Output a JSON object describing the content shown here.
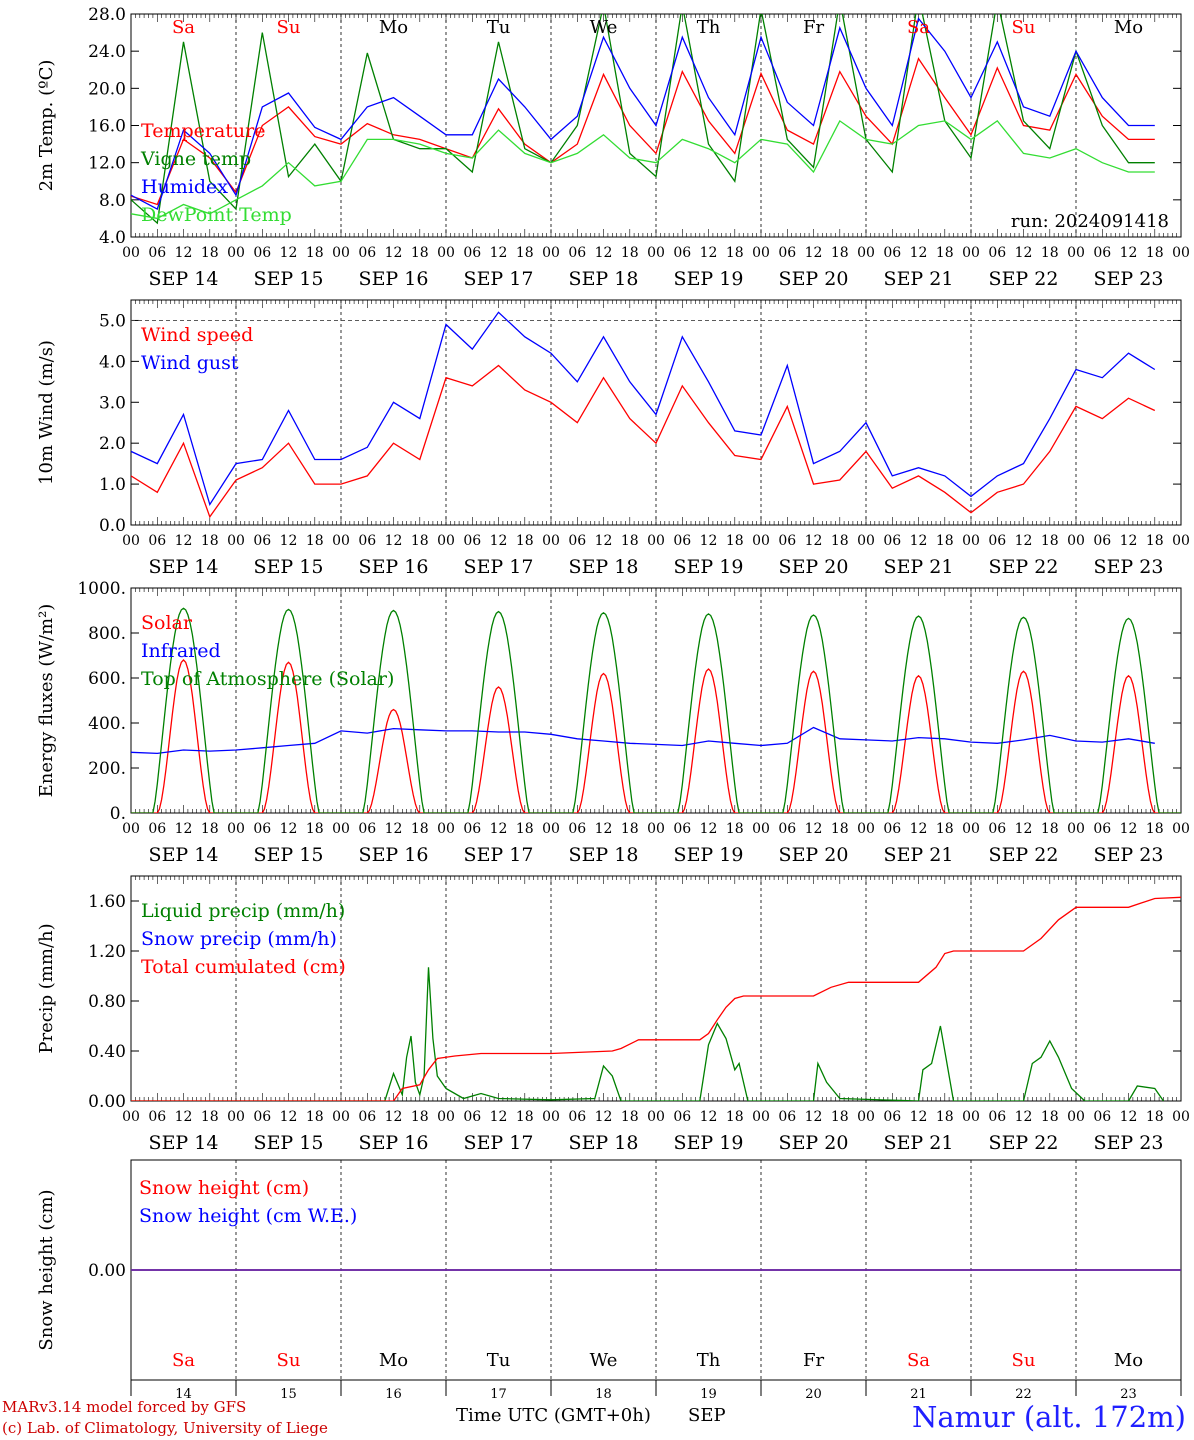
{
  "chart_data": [
    {
      "type": "line",
      "ylabel": "2m Temp. (ºC)",
      "ylim": [
        4.0,
        28.0
      ],
      "yticks": [
        "4.0",
        "8.0",
        "12.0",
        "16.0",
        "20.0",
        "24.0",
        "28.0"
      ],
      "day_labels": [
        "Sa",
        "Su",
        "Mo",
        "Tu",
        "We",
        "Th",
        "Fr",
        "Sa",
        "Su",
        "Mo"
      ],
      "date_labels": [
        "SEP 14",
        "SEP 15",
        "SEP 16",
        "SEP 17",
        "SEP 18",
        "SEP 19",
        "SEP 20",
        "SEP 21",
        "SEP 22",
        "SEP 23"
      ],
      "hour_labels": [
        "00",
        "06",
        "12",
        "18"
      ],
      "annotation": "run: 2024091418",
      "x_hours": [
        0,
        6,
        12,
        18,
        24,
        30,
        36,
        42,
        48,
        54,
        60,
        66,
        72,
        78,
        84,
        90,
        96,
        102,
        108,
        114,
        120,
        126,
        132,
        138,
        144,
        150,
        156,
        162,
        168,
        174,
        180,
        186,
        192,
        198,
        204,
        210,
        216,
        222,
        228,
        234
      ],
      "series": [
        {
          "name": "Temperature",
          "color": "#ff0000",
          "values": [
            8.4,
            7.5,
            14.5,
            12.5,
            8.8,
            16.0,
            18.0,
            14.8,
            14.0,
            16.2,
            15.0,
            14.5,
            13.5,
            12.5,
            17.8,
            14.0,
            12.0,
            14.0,
            21.5,
            16.0,
            13.0,
            21.8,
            16.5,
            13.0,
            21.6,
            15.5,
            14.0,
            21.8,
            17.0,
            14.0,
            23.2,
            19.0,
            15.0,
            22.2,
            16.0,
            15.5,
            21.5,
            17.0,
            14.5,
            14.5
          ]
        },
        {
          "name": "Vigne temp",
          "color": "#008000",
          "values": [
            8.0,
            5.5,
            25.0,
            10.0,
            7.0,
            26.0,
            10.5,
            14.0,
            10.0,
            23.8,
            14.5,
            13.5,
            13.5,
            11.0,
            25.0,
            13.5,
            12.0,
            16.0,
            29.0,
            13.0,
            10.5,
            29.0,
            14.0,
            10.0,
            28.5,
            14.5,
            11.5,
            29.5,
            14.5,
            11.0,
            30.0,
            16.5,
            12.5,
            29.5,
            16.5,
            13.5,
            24.0,
            16.0,
            12.0,
            12.0
          ]
        },
        {
          "name": "Humidex",
          "color": "#0000ff",
          "values": [
            8.5,
            7.0,
            15.5,
            13.0,
            8.5,
            18.0,
            19.5,
            15.8,
            14.5,
            18.0,
            19.0,
            17.0,
            15.0,
            15.0,
            21.0,
            18.0,
            14.5,
            17.0,
            25.5,
            20.0,
            16.0,
            25.5,
            19.0,
            15.0,
            25.5,
            18.5,
            16.0,
            26.5,
            20.0,
            16.0,
            27.5,
            24.0,
            19.0,
            25.0,
            18.0,
            17.0,
            24.0,
            19.0,
            16.0,
            16.0
          ]
        },
        {
          "name": "DewPoint Temp",
          "color": "#33dd33",
          "values": [
            6.5,
            6.0,
            7.5,
            6.5,
            8.0,
            9.5,
            12.0,
            9.5,
            10.0,
            14.5,
            14.5,
            14.0,
            13.0,
            12.5,
            15.5,
            13.0,
            12.0,
            13.0,
            15.0,
            12.5,
            12.0,
            14.5,
            13.5,
            12.0,
            14.5,
            14.0,
            11.0,
            16.5,
            14.5,
            14.0,
            16.0,
            16.5,
            14.5,
            16.5,
            13.0,
            12.5,
            13.5,
            12.0,
            11.0,
            11.0
          ]
        }
      ]
    },
    {
      "type": "line",
      "ylabel": "10m Wind (m/s)",
      "ylim": [
        0.0,
        5.5
      ],
      "yticks": [
        "0.0",
        "1.0",
        "2.0",
        "3.0",
        "4.0",
        "5.0"
      ],
      "date_labels": [
        "SEP 14",
        "SEP 15",
        "SEP 16",
        "SEP 17",
        "SEP 18",
        "SEP 19",
        "SEP 20",
        "SEP 21",
        "SEP 22",
        "SEP 23"
      ],
      "hour_labels": [
        "00",
        "06",
        "12",
        "18"
      ],
      "x_hours": [
        0,
        6,
        12,
        18,
        24,
        30,
        36,
        42,
        48,
        54,
        60,
        66,
        72,
        78,
        84,
        90,
        96,
        102,
        108,
        114,
        120,
        126,
        132,
        138,
        144,
        150,
        156,
        162,
        168,
        174,
        180,
        186,
        192,
        198,
        204,
        210,
        216,
        222,
        228,
        234
      ],
      "series": [
        {
          "name": "Wind speed",
          "color": "#ff0000",
          "values": [
            1.2,
            0.8,
            2.0,
            0.2,
            1.1,
            1.4,
            2.0,
            1.0,
            1.0,
            1.2,
            2.0,
            1.6,
            3.6,
            3.4,
            3.9,
            3.3,
            3.0,
            2.5,
            3.6,
            2.6,
            2.0,
            3.4,
            2.5,
            1.7,
            1.6,
            2.9,
            1.0,
            1.1,
            1.8,
            0.9,
            1.2,
            0.8,
            0.3,
            0.8,
            1.0,
            1.8,
            2.9,
            2.6,
            3.1,
            2.8
          ]
        },
        {
          "name": "Wind gust",
          "color": "#0000ff",
          "values": [
            1.8,
            1.5,
            2.7,
            0.5,
            1.5,
            1.6,
            2.8,
            1.6,
            1.6,
            1.9,
            3.0,
            2.6,
            4.9,
            4.3,
            5.2,
            4.6,
            4.2,
            3.5,
            4.6,
            3.5,
            2.7,
            4.6,
            3.5,
            2.3,
            2.2,
            3.9,
            1.5,
            1.8,
            2.5,
            1.2,
            1.4,
            1.2,
            0.7,
            1.2,
            1.5,
            2.6,
            3.8,
            3.6,
            4.2,
            3.8
          ]
        }
      ]
    },
    {
      "type": "line",
      "ylabel": "Energy fluxes (W/m²)",
      "ylim": [
        0,
        1000
      ],
      "yticks": [
        "0.",
        "200.",
        "400.",
        "600.",
        "800.",
        "1000."
      ],
      "date_labels": [
        "SEP 14",
        "SEP 15",
        "SEP 16",
        "SEP 17",
        "SEP 18",
        "SEP 19",
        "SEP 20",
        "SEP 21",
        "SEP 22",
        "SEP 23"
      ],
      "hour_labels": [
        "00",
        "06",
        "12",
        "18"
      ],
      "series": [
        {
          "name": "Solar",
          "color": "#ff0000",
          "peaks": [
            680,
            670,
            460,
            560,
            620,
            640,
            630,
            610,
            630,
            610
          ]
        },
        {
          "name": "Infrared",
          "color": "#0000ff",
          "values": [
            270,
            265,
            280,
            275,
            280,
            290,
            300,
            310,
            365,
            355,
            375,
            370,
            365,
            365,
            360,
            360,
            350,
            330,
            320,
            310,
            305,
            300,
            320,
            310,
            300,
            310,
            380,
            330,
            325,
            320,
            335,
            330,
            315,
            310,
            325,
            345,
            320,
            315,
            330,
            310
          ]
        },
        {
          "name": "Top of Atmosphere (Solar)",
          "color": "#008000",
          "peaks": [
            910,
            905,
            900,
            895,
            890,
            885,
            880,
            875,
            870,
            865
          ]
        }
      ]
    },
    {
      "type": "line",
      "ylabel": "Precip (mm/h)",
      "ylim": [
        0.0,
        1.8
      ],
      "yticks": [
        "0.00",
        "0.40",
        "0.80",
        "1.20",
        "1.60"
      ],
      "date_labels": [
        "SEP 14",
        "SEP 15",
        "SEP 16",
        "SEP 17",
        "SEP 18",
        "SEP 19",
        "SEP 20",
        "SEP 21",
        "SEP 22",
        "SEP 23"
      ],
      "hour_labels": [
        "00",
        "06",
        "12",
        "18"
      ],
      "series": [
        {
          "name": "Liquid precip (mm/h)",
          "color": "#008000",
          "points": [
            [
              0,
              0
            ],
            [
              58,
              0
            ],
            [
              60,
              0.22
            ],
            [
              62,
              0.05
            ],
            [
              63,
              0.35
            ],
            [
              64,
              0.52
            ],
            [
              65,
              0.15
            ],
            [
              66,
              0.05
            ],
            [
              67,
              0.2
            ],
            [
              68,
              1.07
            ],
            [
              69,
              0.5
            ],
            [
              70,
              0.2
            ],
            [
              72,
              0.1
            ],
            [
              76,
              0.02
            ],
            [
              80,
              0.06
            ],
            [
              84,
              0.02
            ],
            [
              96,
              0.01
            ],
            [
              106,
              0.02
            ],
            [
              108,
              0.28
            ],
            [
              110,
              0.2
            ],
            [
              112,
              0
            ],
            [
              130,
              0
            ],
            [
              132,
              0.45
            ],
            [
              134,
              0.62
            ],
            [
              136,
              0.5
            ],
            [
              138,
              0.25
            ],
            [
              139,
              0.3
            ],
            [
              141,
              0
            ],
            [
              156,
              0
            ],
            [
              157,
              0.3
            ],
            [
              159,
              0.15
            ],
            [
              162,
              0.02
            ],
            [
              180,
              0
            ],
            [
              181,
              0.25
            ],
            [
              183,
              0.3
            ],
            [
              184,
              0.45
            ],
            [
              185,
              0.6
            ],
            [
              186,
              0.4
            ],
            [
              188,
              0
            ],
            [
              204,
              0
            ],
            [
              206,
              0.3
            ],
            [
              208,
              0.35
            ],
            [
              210,
              0.48
            ],
            [
              212,
              0.35
            ],
            [
              215,
              0.1
            ],
            [
              218,
              0
            ],
            [
              228,
              0
            ],
            [
              230,
              0.12
            ],
            [
              234,
              0.1
            ],
            [
              236,
              0
            ]
          ]
        },
        {
          "name": "Snow precip (mm/h)",
          "color": "#0000ff",
          "values": []
        },
        {
          "name": "Total cumulated (cm)",
          "color": "#ff0000",
          "points": [
            [
              0,
              0
            ],
            [
              60,
              0
            ],
            [
              62,
              0.1
            ],
            [
              66,
              0.13
            ],
            [
              68,
              0.25
            ],
            [
              70,
              0.34
            ],
            [
              74,
              0.36
            ],
            [
              80,
              0.38
            ],
            [
              96,
              0.38
            ],
            [
              110,
              0.4
            ],
            [
              112,
              0.42
            ],
            [
              116,
              0.49
            ],
            [
              130,
              0.49
            ],
            [
              132,
              0.54
            ],
            [
              134,
              0.65
            ],
            [
              136,
              0.75
            ],
            [
              138,
              0.82
            ],
            [
              140,
              0.84
            ],
            [
              156,
              0.84
            ],
            [
              160,
              0.91
            ],
            [
              164,
              0.95
            ],
            [
              180,
              0.95
            ],
            [
              184,
              1.07
            ],
            [
              186,
              1.18
            ],
            [
              188,
              1.2
            ],
            [
              204,
              1.2
            ],
            [
              208,
              1.3
            ],
            [
              212,
              1.45
            ],
            [
              216,
              1.55
            ],
            [
              228,
              1.55
            ],
            [
              234,
              1.62
            ],
            [
              240,
              1.63
            ]
          ]
        }
      ]
    },
    {
      "type": "line",
      "ylabel": "Snow height (cm)",
      "ylim": [
        -1.0,
        1.0
      ],
      "yticks": [
        "0.00"
      ],
      "day_labels": [
        "Sa",
        "Su",
        "Mo",
        "Tu",
        "We",
        "Th",
        "Fr",
        "Sa",
        "Su",
        "Mo"
      ],
      "day_numbers": [
        "14",
        "15",
        "16",
        "17",
        "18",
        "19",
        "20",
        "21",
        "22",
        "23"
      ],
      "xlabel": "Time UTC (GMT+0h)",
      "month_label": "SEP",
      "series": [
        {
          "name": "Snow height (cm)",
          "color": "#ff0000",
          "values": [
            0.0
          ]
        },
        {
          "name": "Snow height (cm W.E.)",
          "color": "#0000ff",
          "values": [
            0.0
          ]
        }
      ]
    }
  ],
  "footer": {
    "model": "MARv3.14 model forced by GFS",
    "credit": "(c) Lab. of Climatology, University of Liege",
    "site": "Namur (alt. 172m)"
  },
  "colors": {
    "weekend": "#ff0000",
    "weekday": "#000000",
    "site": "#2020ff"
  }
}
